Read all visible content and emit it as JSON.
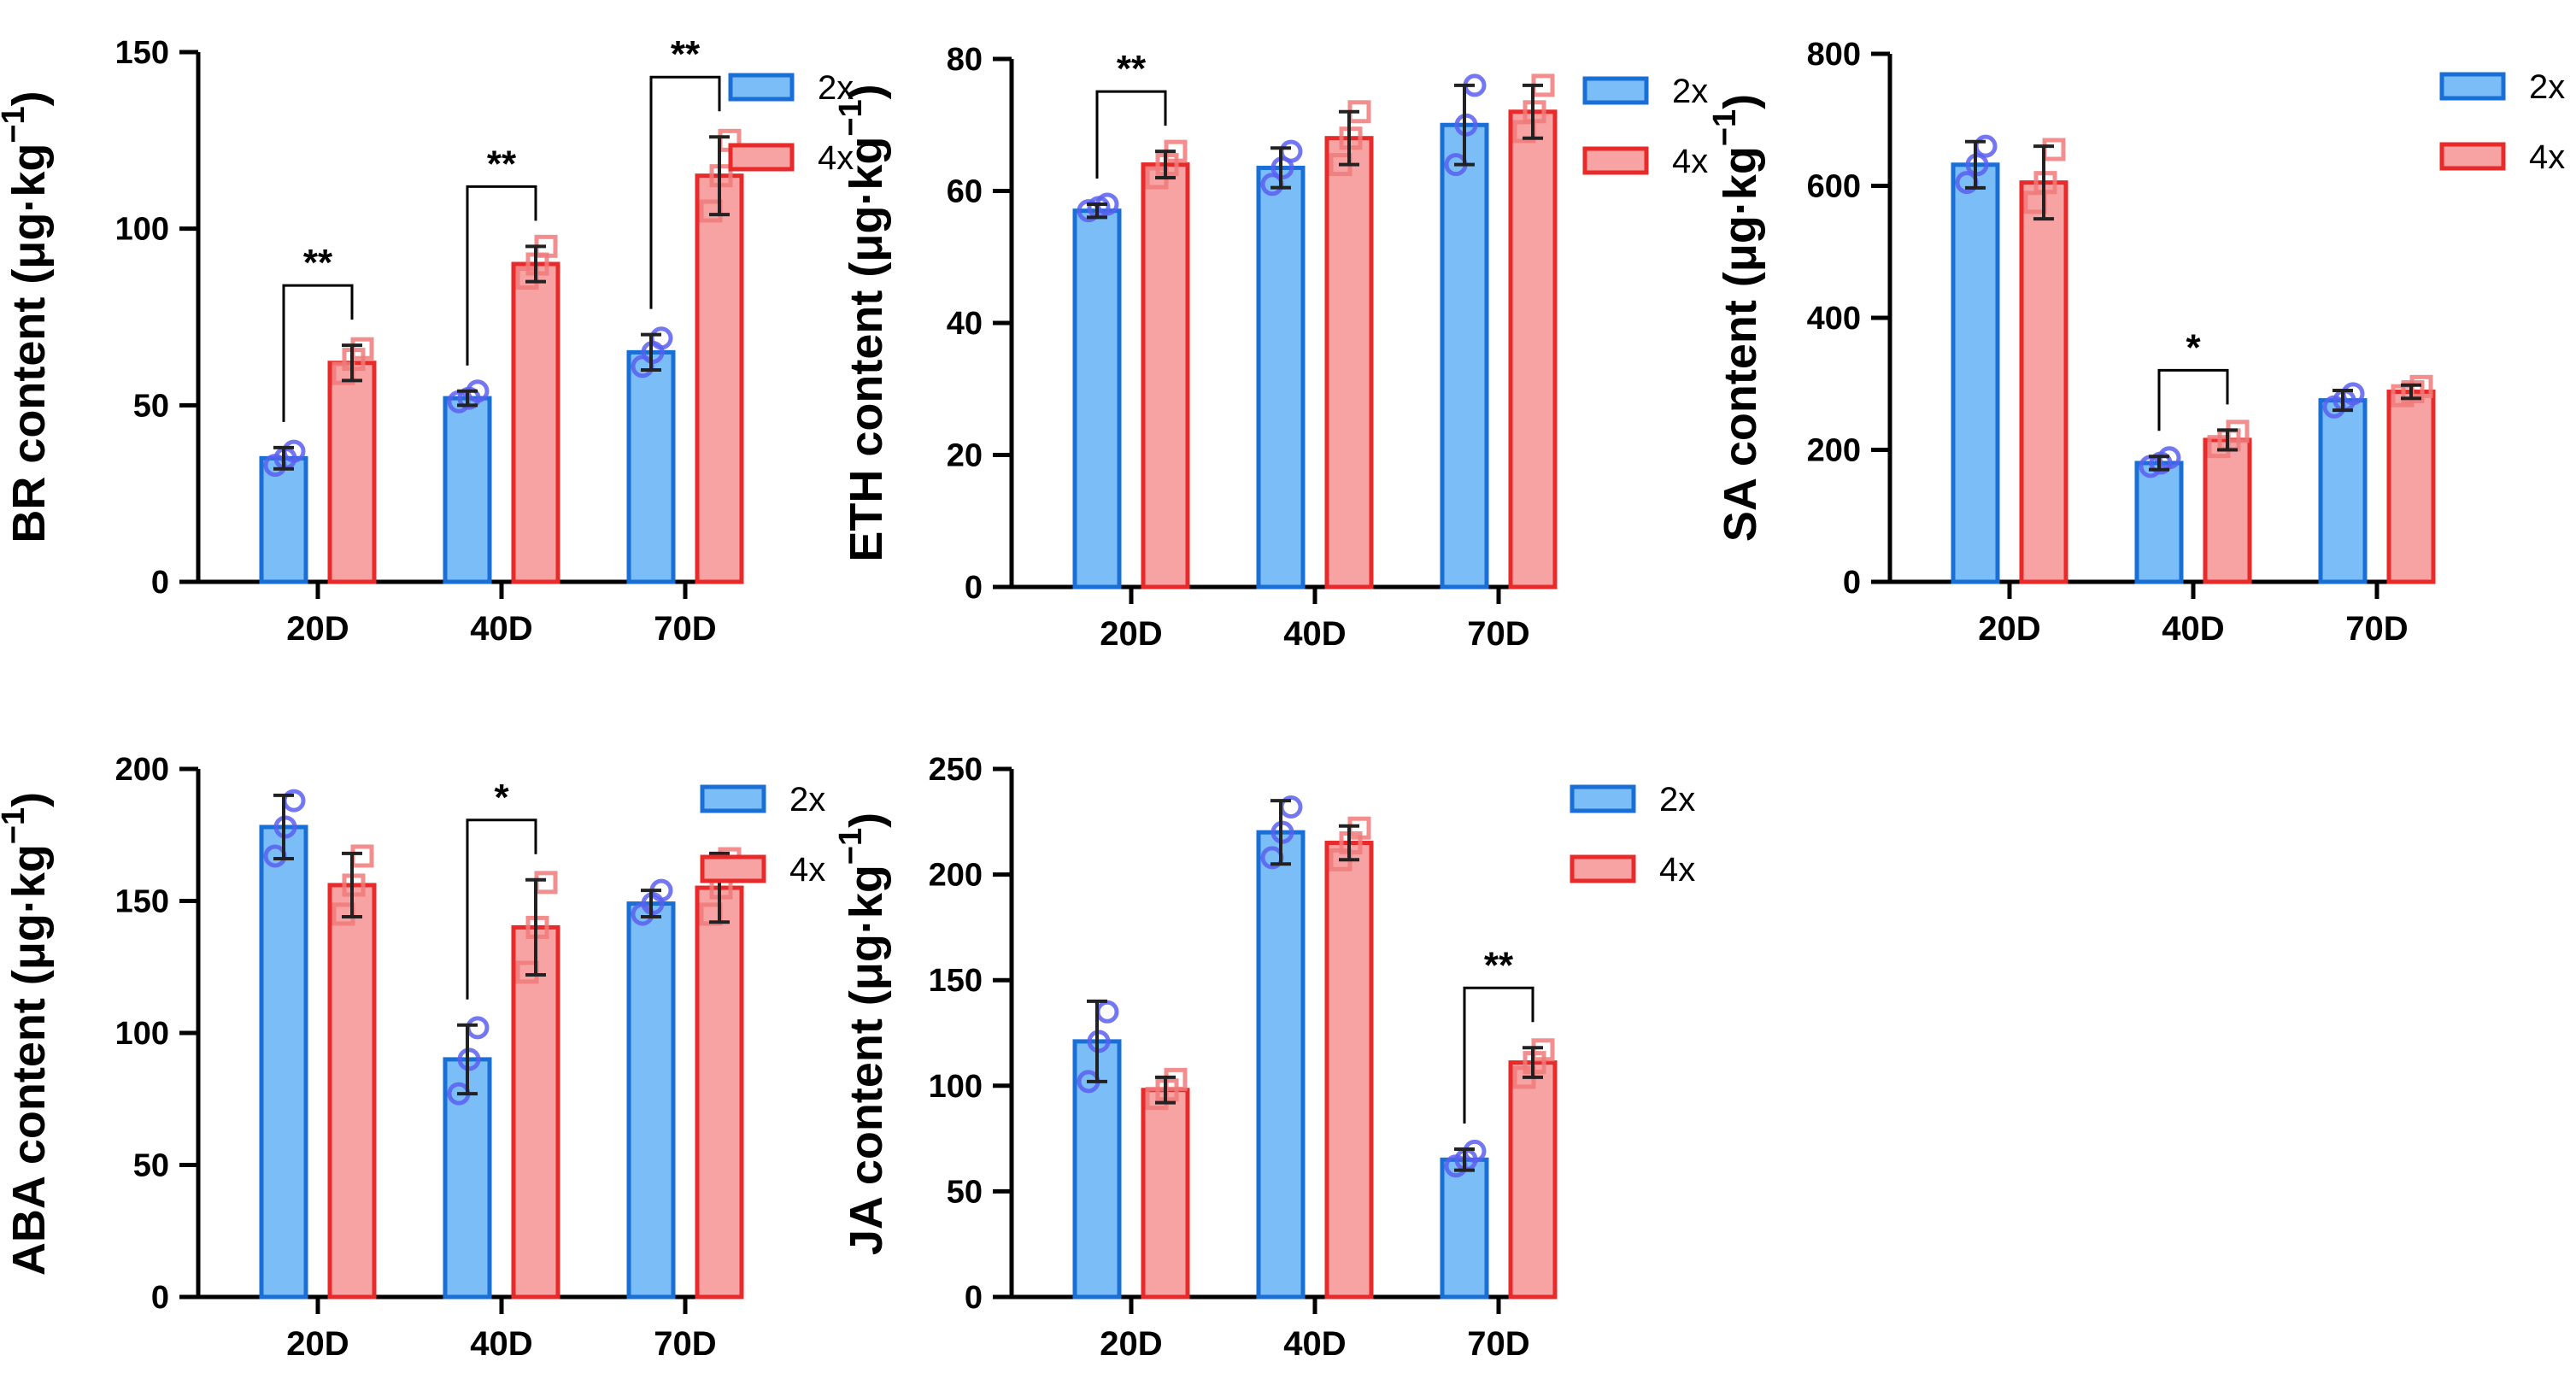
{
  "colors": {
    "series_2x_fill": "#7bbdf7",
    "series_2x_stroke": "#1a6fd6",
    "series_2x_point": "#5b5ff0",
    "series_4x_fill": "#f7a3a3",
    "series_4x_stroke": "#e82a2a",
    "series_4x_point": "#f07a7a",
    "axis": "#000000"
  },
  "chart_data": [
    {
      "type": "bar",
      "ylabel_main": "BR content (μg·kg",
      "ylabel_exp": "−1",
      "ylabel_close": ")",
      "categories": [
        "20D",
        "40D",
        "70D"
      ],
      "ylim": [
        0,
        150
      ],
      "yticks": [
        0,
        50,
        100,
        150
      ],
      "series": [
        {
          "name": "2x",
          "values": [
            35,
            52,
            65
          ],
          "errors": [
            3,
            2,
            5
          ],
          "points": [
            [
              33,
              35,
              37
            ],
            [
              51,
              52,
              54
            ],
            [
              61,
              65,
              69
            ]
          ]
        },
        {
          "name": "4x",
          "values": [
            62,
            90,
            115
          ],
          "errors": [
            5,
            5,
            11
          ],
          "points": [
            [
              59,
              63,
              66
            ],
            [
              86,
              90,
              95
            ],
            [
              105,
              115,
              125
            ]
          ]
        }
      ],
      "significance": [
        {
          "category": 0,
          "label": "**"
        },
        {
          "category": 1,
          "label": "**"
        },
        {
          "category": 2,
          "label": "**"
        }
      ],
      "legend": "right"
    },
    {
      "type": "bar",
      "ylabel_main": "ETH content (μg·kg",
      "ylabel_exp": "−1",
      "ylabel_close": ")",
      "categories": [
        "20D",
        "40D",
        "70D"
      ],
      "ylim": [
        0,
        80
      ],
      "yticks": [
        0,
        20,
        40,
        60,
        80
      ],
      "series": [
        {
          "name": "2x",
          "values": [
            57,
            63.5,
            70
          ],
          "errors": [
            1,
            3,
            6
          ],
          "points": [
            [
              57,
              57.5,
              58
            ],
            [
              61,
              63.5,
              66
            ],
            [
              64,
              70,
              76
            ]
          ]
        },
        {
          "name": "4x",
          "values": [
            64,
            68,
            72
          ],
          "errors": [
            2,
            4,
            4
          ],
          "points": [
            [
              62,
              64,
              66
            ],
            [
              64,
              68,
              72
            ],
            [
              69,
              72,
              76
            ]
          ]
        }
      ],
      "significance": [
        {
          "category": 0,
          "label": "**"
        }
      ],
      "legend": "right"
    },
    {
      "type": "bar",
      "ylabel_main": "SA content (μg·kg",
      "ylabel_exp": "−1",
      "ylabel_close": ")",
      "categories": [
        "20D",
        "40D",
        "70D"
      ],
      "ylim": [
        0,
        800
      ],
      "yticks": [
        0,
        200,
        400,
        600,
        800
      ],
      "series": [
        {
          "name": "2x",
          "values": [
            632,
            180,
            275
          ],
          "errors": [
            35,
            10,
            15
          ],
          "points": [
            [
              605,
              632,
              660
            ],
            [
              175,
              180,
              188
            ],
            [
              265,
              275,
              285
            ]
          ]
        },
        {
          "name": "4x",
          "values": [
            605,
            215,
            288
          ],
          "errors": [
            55,
            15,
            10
          ],
          "points": [
            [
              575,
              605,
              655
            ],
            [
              205,
              215,
              228
            ],
            [
              282,
              288,
              296
            ]
          ]
        }
      ],
      "significance": [
        {
          "category": 1,
          "label": "*"
        }
      ],
      "legend": "right"
    },
    {
      "type": "bar",
      "ylabel_main": "ABA content (μg·kg",
      "ylabel_exp": "−1",
      "ylabel_close": ")",
      "categories": [
        "20D",
        "40D",
        "70D"
      ],
      "ylim": [
        0,
        200
      ],
      "yticks": [
        0,
        50,
        100,
        150,
        200
      ],
      "series": [
        {
          "name": "2x",
          "values": [
            178,
            90,
            149
          ],
          "errors": [
            12,
            13,
            5
          ],
          "points": [
            [
              167,
              178,
              188
            ],
            [
              77,
              90,
              102
            ],
            [
              145,
              149,
              154
            ]
          ]
        },
        {
          "name": "4x",
          "values": [
            156,
            140,
            155
          ],
          "errors": [
            12,
            18,
            13
          ],
          "points": [
            [
              145,
              156,
              167
            ],
            [
              123,
              140,
              157
            ],
            [
              145,
              155,
              166
            ]
          ]
        }
      ],
      "significance": [
        {
          "category": 1,
          "label": "*"
        }
      ],
      "legend": "right"
    },
    {
      "type": "bar",
      "ylabel_main": "JA content (μg·kg",
      "ylabel_exp": "−1",
      "ylabel_close": ")",
      "categories": [
        "20D",
        "40D",
        "70D"
      ],
      "ylim": [
        0,
        250
      ],
      "yticks": [
        0,
        50,
        100,
        150,
        200,
        250
      ],
      "series": [
        {
          "name": "2x",
          "values": [
            121,
            220,
            65
          ],
          "errors": [
            19,
            15,
            5
          ],
          "points": [
            [
              102,
              121,
              135
            ],
            [
              208,
              220,
              232
            ],
            [
              62,
              65,
              69
            ]
          ]
        },
        {
          "name": "4x",
          "values": [
            98,
            215,
            111
          ],
          "errors": [
            6,
            8,
            7
          ],
          "points": [
            [
              94,
              98,
              103
            ],
            [
              207,
              215,
              222
            ],
            [
              104,
              111,
              117
            ]
          ]
        }
      ],
      "significance": [
        {
          "category": 2,
          "label": "**"
        }
      ],
      "legend": "right"
    }
  ]
}
